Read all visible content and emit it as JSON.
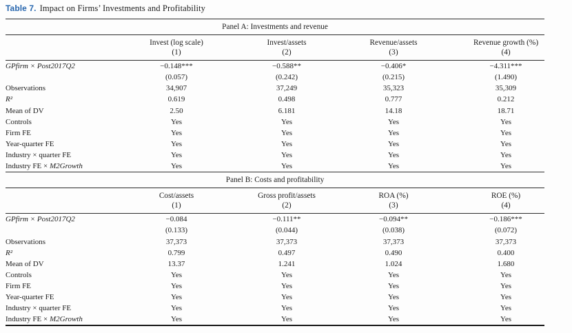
{
  "title": {
    "label": "Table 7.",
    "text": "Impact on Firms’ Investments and Profitability",
    "color": "#2766ae"
  },
  "panels": [
    {
      "caption": "Panel A: Investments and revenue",
      "columns": [
        {
          "name": "Invest (log scale)",
          "num": "(1)"
        },
        {
          "name": "Invest/assets",
          "num": "(2)"
        },
        {
          "name": "Revenue/assets",
          "num": "(3)"
        },
        {
          "name": "Revenue growth (%)",
          "num": "(4)"
        }
      ],
      "rows": [
        {
          "label": "GPfirm × Post2017Q2",
          "values": [
            "−0.148***",
            "−0.588**",
            "−0.406*",
            "−4.311***"
          ]
        },
        {
          "label": "",
          "values": [
            "(0.057)",
            "(0.242)",
            "(0.215)",
            "(1.490)"
          ]
        },
        {
          "label": "Observations",
          "values": [
            "34,907",
            "37,249",
            "35,323",
            "35,309"
          ]
        },
        {
          "label": "R²",
          "values": [
            "0.619",
            "0.498",
            "0.777",
            "0.212"
          ]
        },
        {
          "label": "Mean of DV",
          "values": [
            "2.50",
            "6.181",
            "14.18",
            "18.71"
          ]
        },
        {
          "label": "Controls",
          "values": [
            "Yes",
            "Yes",
            "Yes",
            "Yes"
          ]
        },
        {
          "label": "Firm FE",
          "values": [
            "Yes",
            "Yes",
            "Yes",
            "Yes"
          ]
        },
        {
          "label": "Year-quarter FE",
          "values": [
            "Yes",
            "Yes",
            "Yes",
            "Yes"
          ]
        },
        {
          "label": "Industry × quarter FE",
          "values": [
            "Yes",
            "Yes",
            "Yes",
            "Yes"
          ]
        },
        {
          "label_prefix": "Industry FE × ",
          "label_italic": "M2Growth",
          "values": [
            "Yes",
            "Yes",
            "Yes",
            "Yes"
          ]
        }
      ]
    },
    {
      "caption": "Panel B: Costs and profitability",
      "columns": [
        {
          "name": "Cost/assets",
          "num": "(1)"
        },
        {
          "name": "Gross profit/assets",
          "num": "(2)"
        },
        {
          "name": "ROA (%)",
          "num": "(3)"
        },
        {
          "name": "ROE (%)",
          "num": "(4)"
        }
      ],
      "rows": [
        {
          "label": "GPfirm × Post2017Q2",
          "values": [
            "−0.084",
            "−0.111**",
            "−0.094**",
            "−0.186***"
          ]
        },
        {
          "label": "",
          "values": [
            "(0.133)",
            "(0.044)",
            "(0.038)",
            "(0.072)"
          ]
        },
        {
          "label": "Observations",
          "values": [
            "37,373",
            "37,373",
            "37,373",
            "37,373"
          ]
        },
        {
          "label": "R²",
          "values": [
            "0.799",
            "0.497",
            "0.490",
            "0.400"
          ]
        },
        {
          "label": "Mean of DV",
          "values": [
            "13.37",
            "1.241",
            "1.024",
            "1.680"
          ]
        },
        {
          "label": "Controls",
          "values": [
            "Yes",
            "Yes",
            "Yes",
            "Yes"
          ]
        },
        {
          "label": "Firm FE",
          "values": [
            "Yes",
            "Yes",
            "Yes",
            "Yes"
          ]
        },
        {
          "label": "Year-quarter FE",
          "values": [
            "Yes",
            "Yes",
            "Yes",
            "Yes"
          ]
        },
        {
          "label": "Industry × quarter FE",
          "values": [
            "Yes",
            "Yes",
            "Yes",
            "Yes"
          ]
        },
        {
          "label_prefix": "Industry FE × ",
          "label_italic": "M2Growth",
          "values": [
            "Yes",
            "Yes",
            "Yes",
            "Yes"
          ]
        }
      ]
    }
  ]
}
